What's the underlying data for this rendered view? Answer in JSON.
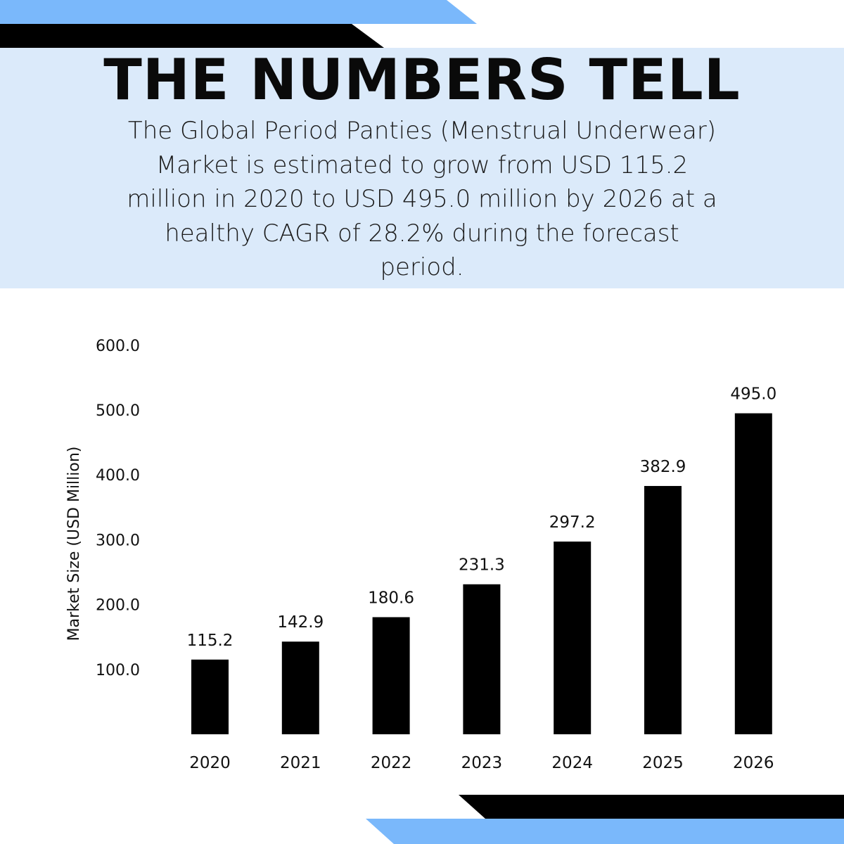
{
  "header": {
    "title": "THE NUMBERS TELL",
    "subtitle": "The Global Period Panties (Menstrual Underwear) Market is estimated to grow from USD 115.2 million in 2020 to USD 495.0 million by 2026 at a healthy CAGR of 28.2% during the forecast period."
  },
  "colors": {
    "accent_blue": "#7ab8fb",
    "panel_blue": "#dbeafa",
    "bar": "#000000",
    "dark_stripe": "#000000"
  },
  "chart_data": {
    "type": "bar",
    "title": "",
    "xlabel": "",
    "ylabel": "Market Size (USD Million)",
    "categories": [
      "2020",
      "2021",
      "2022",
      "2023",
      "2024",
      "2025",
      "2026"
    ],
    "values": [
      115.2,
      142.9,
      180.6,
      231.3,
      297.2,
      382.9,
      495.0
    ],
    "value_labels": [
      "115.2",
      "142.9",
      "180.6",
      "231.3",
      "297.2",
      "382.9",
      "495.0"
    ],
    "ylim": [
      0,
      600
    ],
    "yticks": [
      100,
      200,
      300,
      400,
      500,
      600
    ],
    "ytick_labels": [
      "100.0",
      "200.0",
      "300.0",
      "400.0",
      "500.0",
      "600.0"
    ],
    "grid": false,
    "legend": "none"
  }
}
